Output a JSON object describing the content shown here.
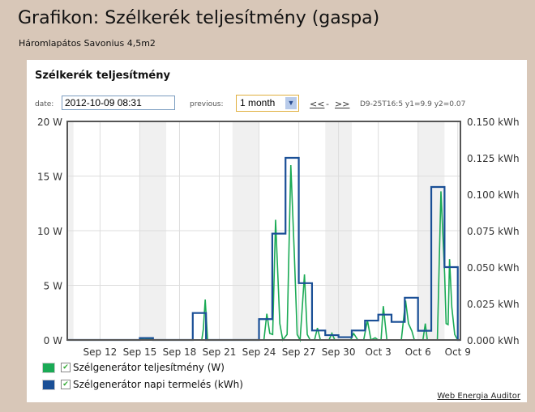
{
  "page": {
    "title": "Grafikon: Szélkerék teljesítmény (gaspa)",
    "subtitle": "Háromlapátos Savonius 4,5m2"
  },
  "controls": {
    "date_label": "date:",
    "date_value": "2012-10-09 08:31",
    "previous_label": "previous:",
    "previous_value": "1 month",
    "prev_link": "<<",
    "sep": "-",
    "next_link": ">>",
    "cursor_info": "D9-25T16:5 y1=9.9 y2=0.07"
  },
  "footer": {
    "link": "Web Energia Auditor"
  },
  "chart_data": {
    "type": "line",
    "title": "Szélkerék teljesítmény",
    "x_unit": "day (Sep 2012; 31 = Oct 1)",
    "xlim": [
      9.53,
      39.2
    ],
    "xticks": [
      12,
      15,
      18,
      21,
      24,
      27,
      30,
      33,
      36,
      39
    ],
    "xtick_labels": [
      "Sep 12",
      "Sep 15",
      "Sep 18",
      "Sep 21",
      "Sep 24",
      "Sep 27",
      "Sep 30",
      "Oct 3",
      "Oct 6",
      "Oct 9"
    ],
    "y_left": {
      "ylim": [
        0,
        20
      ],
      "ticks": [
        "0 W",
        "5 W",
        "10 W",
        "15 W",
        "20 W"
      ]
    },
    "y_right": {
      "ylim": [
        0,
        0.15
      ],
      "ticks": [
        "0.000 kWh",
        "0.025 kWh",
        "0.050 kWh",
        "0.075 kWh",
        "0.100 kWh",
        "0.125 kWh",
        "0.150 kWh"
      ]
    },
    "shaded_ranges": [
      [
        9.53,
        10
      ],
      [
        15,
        17
      ],
      [
        22,
        24
      ],
      [
        29,
        31
      ],
      [
        36,
        38
      ]
    ],
    "series": [
      {
        "name": "Szélgenerátor teljesítmény (W)",
        "color": "#1aaa55",
        "axis": "left",
        "points": [
          [
            9.53,
            0
          ],
          [
            15,
            0
          ],
          [
            15.3,
            0.15
          ],
          [
            15.8,
            0.1
          ],
          [
            16.1,
            0
          ],
          [
            19.68,
            0
          ],
          [
            19.8,
            1
          ],
          [
            19.94,
            3.7
          ],
          [
            20.12,
            0
          ],
          [
            24.37,
            0
          ],
          [
            24.59,
            2.4
          ],
          [
            24.81,
            0.6
          ],
          [
            25.03,
            0.5
          ],
          [
            25.25,
            11
          ],
          [
            25.57,
            1.5
          ],
          [
            25.79,
            0
          ],
          [
            26.12,
            0.5
          ],
          [
            26.4,
            16
          ],
          [
            26.66,
            8
          ],
          [
            26.88,
            0.5
          ],
          [
            27.1,
            0
          ],
          [
            27.43,
            6
          ],
          [
            27.64,
            0.5
          ],
          [
            27.86,
            0
          ],
          [
            28.19,
            0
          ],
          [
            28.41,
            1.1
          ],
          [
            28.63,
            0
          ],
          [
            29.28,
            0
          ],
          [
            29.5,
            0.6
          ],
          [
            29.72,
            0
          ],
          [
            30.92,
            0
          ],
          [
            31.14,
            0.6
          ],
          [
            31.46,
            0
          ],
          [
            31.9,
            0
          ],
          [
            32.18,
            1.8
          ],
          [
            32.45,
            0
          ],
          [
            32.77,
            0.2
          ],
          [
            32.99,
            0
          ],
          [
            33.21,
            0
          ],
          [
            33.38,
            3.1
          ],
          [
            33.65,
            0
          ],
          [
            34.74,
            0
          ],
          [
            35.06,
            3.6
          ],
          [
            35.28,
            1.5
          ],
          [
            35.54,
            0.8
          ],
          [
            35.72,
            0
          ],
          [
            36.37,
            0
          ],
          [
            36.55,
            1.5
          ],
          [
            36.7,
            0
          ],
          [
            37.46,
            0
          ],
          [
            37.73,
            13.6
          ],
          [
            38.01,
            6
          ],
          [
            38.12,
            1.5
          ],
          [
            38.27,
            1.4
          ],
          [
            38.38,
            7.4
          ],
          [
            38.55,
            3
          ],
          [
            38.77,
            0.5
          ],
          [
            38.99,
            0
          ]
        ]
      },
      {
        "name": "Szélgenerátor napi termelés (kWh)",
        "color": "#1a4f96",
        "axis": "right",
        "daily": [
          [
            9.53,
            0
          ],
          [
            15,
            0.0013
          ],
          [
            16,
            0
          ],
          [
            19,
            0.0185
          ],
          [
            20,
            0
          ],
          [
            24,
            0.0143
          ],
          [
            25,
            0.073
          ],
          [
            26,
            0.125
          ],
          [
            27,
            0.039
          ],
          [
            28,
            0.0065
          ],
          [
            29,
            0.0033
          ],
          [
            30,
            0.0019
          ],
          [
            31,
            0.0065
          ],
          [
            32,
            0.0133
          ],
          [
            33,
            0.0174
          ],
          [
            34,
            0.0124
          ],
          [
            35,
            0.029
          ],
          [
            36,
            0.0063
          ],
          [
            37,
            0.105
          ],
          [
            38,
            0.05
          ],
          [
            39,
            0
          ]
        ],
        "end": 39.2
      }
    ]
  }
}
